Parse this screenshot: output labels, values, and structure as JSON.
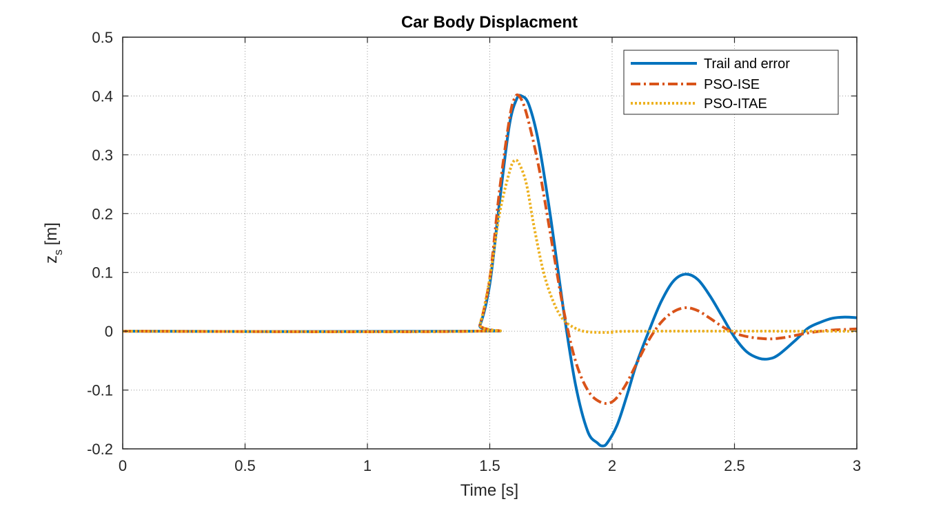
{
  "chart_data": {
    "type": "line",
    "title": "Car Body Displacment",
    "xlabel": "Time [s]",
    "ylabel_main": "z",
    "ylabel_sub": "s",
    "ylabel_unit": "[m]",
    "xlim": [
      0,
      3
    ],
    "ylim": [
      -0.2,
      0.5
    ],
    "xticks": [
      0,
      0.5,
      1,
      1.5,
      2,
      2.5,
      3
    ],
    "xtick_labels": [
      "0",
      "0.5",
      "1",
      "1.5",
      "2",
      "2.5",
      "3"
    ],
    "yticks": [
      -0.2,
      -0.1,
      0,
      0.1,
      0.2,
      0.3,
      0.4,
      0.5
    ],
    "ytick_labels": [
      "-0.2",
      "-0.1",
      "0",
      "0.1",
      "0.2",
      "0.3",
      "0.4",
      "0.5"
    ],
    "grid": true,
    "legend_position": "top-right",
    "series": [
      {
        "name": "Trail and error",
        "color": "#0072BD",
        "style": "solid",
        "x": [
          0,
          1.43,
          1.46,
          1.5,
          1.54,
          1.58,
          1.61,
          1.63,
          1.66,
          1.7,
          1.75,
          1.8,
          1.85,
          1.9,
          1.94,
          1.96,
          1.98,
          2.02,
          2.06,
          2.1,
          2.15,
          2.2,
          2.25,
          2.3,
          2.35,
          2.4,
          2.45,
          2.5,
          2.55,
          2.6,
          2.64,
          2.68,
          2.75,
          2.8,
          2.85,
          2.9,
          2.95,
          3.0
        ],
        "y": [
          0,
          0,
          0.01,
          0.08,
          0.22,
          0.35,
          0.395,
          0.4,
          0.385,
          0.32,
          0.19,
          0.04,
          -0.09,
          -0.17,
          -0.19,
          -0.195,
          -0.19,
          -0.16,
          -0.11,
          -0.055,
          0.0,
          0.05,
          0.085,
          0.097,
          0.088,
          0.06,
          0.025,
          -0.01,
          -0.035,
          -0.046,
          -0.047,
          -0.04,
          -0.015,
          0.005,
          0.015,
          0.022,
          0.024,
          0.023
        ]
      },
      {
        "name": "PSO-ISE",
        "color": "#D95319",
        "style": "dashdot",
        "x": [
          0,
          1.43,
          1.46,
          1.5,
          1.54,
          1.58,
          1.6,
          1.62,
          1.65,
          1.7,
          1.75,
          1.8,
          1.85,
          1.9,
          1.95,
          2.0,
          2.05,
          2.1,
          2.15,
          2.2,
          2.25,
          2.3,
          2.35,
          2.4,
          2.45,
          2.5,
          2.55,
          2.6,
          2.65,
          2.7,
          2.75,
          2.8,
          2.85,
          2.9,
          2.95,
          3.0
        ],
        "y": [
          0,
          0,
          0.012,
          0.09,
          0.24,
          0.36,
          0.395,
          0.4,
          0.37,
          0.28,
          0.16,
          0.04,
          -0.05,
          -0.1,
          -0.12,
          -0.12,
          -0.095,
          -0.055,
          -0.015,
          0.015,
          0.033,
          0.04,
          0.035,
          0.022,
          0.008,
          -0.003,
          -0.009,
          -0.012,
          -0.013,
          -0.011,
          -0.007,
          -0.003,
          0.0,
          0.002,
          0.003,
          0.004
        ]
      },
      {
        "name": "PSO-ITAE",
        "color": "#EDB120",
        "style": "dotted",
        "x": [
          0,
          1.43,
          1.46,
          1.5,
          1.54,
          1.58,
          1.6,
          1.62,
          1.65,
          1.68,
          1.72,
          1.76,
          1.8,
          1.85,
          1.9,
          2.0,
          2.1,
          3.0
        ],
        "y": [
          0,
          0,
          0.012,
          0.09,
          0.2,
          0.27,
          0.29,
          0.285,
          0.25,
          0.18,
          0.1,
          0.05,
          0.02,
          0.005,
          -0.001,
          -0.002,
          0.0,
          0.0
        ]
      }
    ]
  }
}
